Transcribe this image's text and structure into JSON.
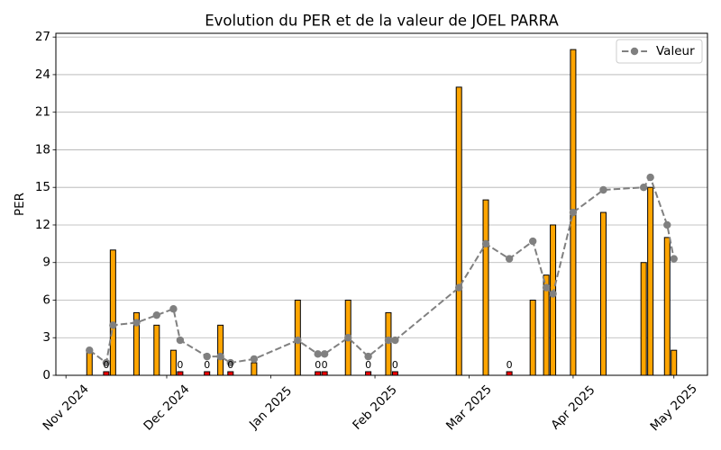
{
  "chart_data": {
    "type": "bar",
    "title": "Evolution du PER et de la valeur de JOEL PARRA",
    "ylabel": "PER",
    "x": [
      "2024-11-08",
      "2024-11-13",
      "2024-11-15",
      "2024-11-22",
      "2024-11-28",
      "2024-12-03",
      "2024-12-05",
      "2024-12-13",
      "2024-12-17",
      "2024-12-20",
      "2024-12-27",
      "2025-01-09",
      "2025-01-15",
      "2025-01-17",
      "2025-01-24",
      "2025-01-30",
      "2025-02-05",
      "2025-02-07",
      "2025-02-26",
      "2025-03-06",
      "2025-03-13",
      "2025-03-20",
      "2025-03-24",
      "2025-03-26",
      "2025-04-01",
      "2025-04-10",
      "2025-04-22",
      "2025-04-24",
      "2025-04-29",
      "2025-05-01"
    ],
    "series": [
      {
        "type": "bar",
        "values": [
          2,
          0,
          10,
          5,
          4,
          2,
          0,
          0,
          4,
          0,
          1,
          6,
          0,
          0,
          6,
          0,
          5,
          0,
          23,
          14,
          0,
          6,
          8,
          12,
          26,
          13,
          9,
          15,
          11,
          2
        ]
      },
      {
        "type": "line",
        "name": "Valeur",
        "values": [
          2.0,
          1.0,
          4.0,
          4.2,
          4.8,
          5.3,
          2.8,
          1.5,
          1.5,
          1.0,
          1.3,
          2.8,
          1.7,
          1.7,
          3.0,
          1.5,
          2.8,
          2.8,
          7.0,
          10.5,
          9.3,
          10.7,
          7.0,
          6.5,
          13.0,
          14.8,
          15.0,
          15.8,
          12.0,
          9.3
        ]
      }
    ],
    "xlim": [
      "2024-10-29",
      "2025-05-11"
    ],
    "ylim": [
      0,
      27.3
    ],
    "xticks": [
      {
        "value": "2024-11-01",
        "label": "Nov 2024"
      },
      {
        "value": "2024-12-01",
        "label": "Dec 2024"
      },
      {
        "value": "2025-01-01",
        "label": "Jan 2025"
      },
      {
        "value": "2025-02-01",
        "label": "Feb 2025"
      },
      {
        "value": "2025-03-01",
        "label": "Mar 2025"
      },
      {
        "value": "2025-04-01",
        "label": "Apr 2025"
      },
      {
        "value": "2025-05-01",
        "label": "May 2025"
      }
    ],
    "yticks": [
      0,
      3,
      6,
      9,
      12,
      15,
      18,
      21,
      24,
      27
    ],
    "grid": {
      "x": false,
      "y": true
    },
    "legend": {
      "position": "upper right"
    },
    "colors": {
      "bar": "#ffa500",
      "zero_bar": "#ff0000",
      "bar_edge": "#000000",
      "line": "#808080",
      "grid": "#b0b0b0"
    }
  }
}
